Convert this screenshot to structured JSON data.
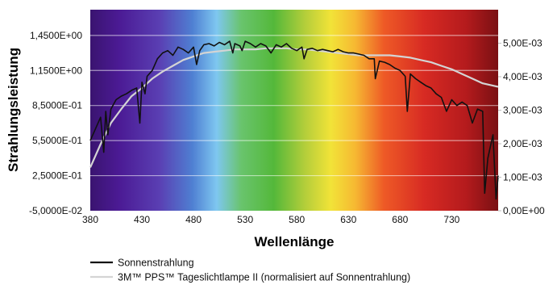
{
  "chart_data": {
    "type": "line",
    "title": "",
    "xlabel": "Wellenlänge",
    "ylabel": "Strahlungsleistung",
    "xlim": [
      380,
      775
    ],
    "ylim_left": [
      -0.05,
      1.67
    ],
    "ylim_right": [
      0,
      0.006
    ],
    "x_ticks": [
      "380",
      "430",
      "480",
      "530",
      "580",
      "630",
      "680",
      "730"
    ],
    "y_ticks_left": [
      "-5,0000E-02",
      "2,5000E-01",
      "5,5000E-01",
      "8,5000E-01",
      "1,1500E+00",
      "1,4500E+00"
    ],
    "y_ticks_right": [
      "0,00E+00",
      "1,00E-03",
      "2,00E-03",
      "3,00E-03",
      "4,00E-03",
      "5,00E-03"
    ],
    "background": "visible spectrum gradient (violet to red)",
    "grid": "horizontal",
    "legend_position": "bottom",
    "series": [
      {
        "name": "Sonnenstrahlung",
        "color": "#111111",
        "axis": "left",
        "x": [
          380,
          385,
          390,
          393,
          395,
          397,
          400,
          405,
          410,
          415,
          420,
          425,
          428,
          430,
          433,
          435,
          440,
          445,
          450,
          455,
          460,
          465,
          470,
          475,
          480,
          483,
          486,
          490,
          495,
          500,
          505,
          510,
          515,
          518,
          520,
          525,
          527,
          530,
          535,
          540,
          545,
          550,
          555,
          560,
          565,
          570,
          575,
          580,
          585,
          587,
          590,
          595,
          600,
          605,
          610,
          615,
          620,
          625,
          630,
          635,
          640,
          645,
          650,
          655,
          656,
          660,
          665,
          670,
          675,
          680,
          685,
          687,
          690,
          695,
          700,
          705,
          710,
          715,
          720,
          725,
          730,
          735,
          740,
          745,
          750,
          755,
          760,
          762,
          765,
          770,
          773,
          775
        ],
        "y": [
          0.55,
          0.65,
          0.75,
          0.45,
          0.8,
          0.6,
          0.82,
          0.9,
          0.93,
          0.95,
          0.98,
          1.0,
          0.7,
          1.05,
          0.95,
          1.1,
          1.15,
          1.25,
          1.3,
          1.32,
          1.28,
          1.35,
          1.33,
          1.3,
          1.35,
          1.2,
          1.32,
          1.37,
          1.38,
          1.36,
          1.39,
          1.37,
          1.4,
          1.3,
          1.38,
          1.36,
          1.32,
          1.4,
          1.38,
          1.35,
          1.38,
          1.36,
          1.3,
          1.37,
          1.35,
          1.38,
          1.34,
          1.32,
          1.35,
          1.25,
          1.33,
          1.34,
          1.32,
          1.33,
          1.32,
          1.31,
          1.33,
          1.31,
          1.3,
          1.3,
          1.29,
          1.28,
          1.25,
          1.25,
          1.08,
          1.23,
          1.22,
          1.2,
          1.17,
          1.15,
          1.1,
          0.8,
          1.12,
          1.08,
          1.05,
          1.02,
          1.0,
          0.95,
          0.92,
          0.8,
          0.9,
          0.85,
          0.88,
          0.85,
          0.7,
          0.82,
          0.8,
          0.1,
          0.4,
          0.6,
          0.05,
          0.25
        ]
      },
      {
        "name": "3M™ PPS™ Tageslichtlampe II (normalisiert auf Sonnentrahlung)",
        "color": "#d4d4d4",
        "axis": "left",
        "x": [
          380,
          390,
          400,
          410,
          420,
          430,
          440,
          450,
          460,
          470,
          480,
          490,
          500,
          510,
          520,
          530,
          540,
          550,
          560,
          570,
          580,
          590,
          600,
          610,
          620,
          630,
          640,
          650,
          660,
          670,
          680,
          690,
          700,
          710,
          720,
          730,
          740,
          750,
          760,
          770,
          775
        ],
        "y": [
          0.32,
          0.52,
          0.7,
          0.82,
          0.93,
          1.0,
          1.08,
          1.14,
          1.19,
          1.24,
          1.27,
          1.3,
          1.31,
          1.32,
          1.33,
          1.33,
          1.33,
          1.34,
          1.34,
          1.34,
          1.33,
          1.33,
          1.32,
          1.31,
          1.3,
          1.29,
          1.28,
          1.28,
          1.28,
          1.28,
          1.27,
          1.26,
          1.24,
          1.22,
          1.19,
          1.16,
          1.12,
          1.08,
          1.04,
          1.02,
          1.01
        ]
      }
    ]
  }
}
